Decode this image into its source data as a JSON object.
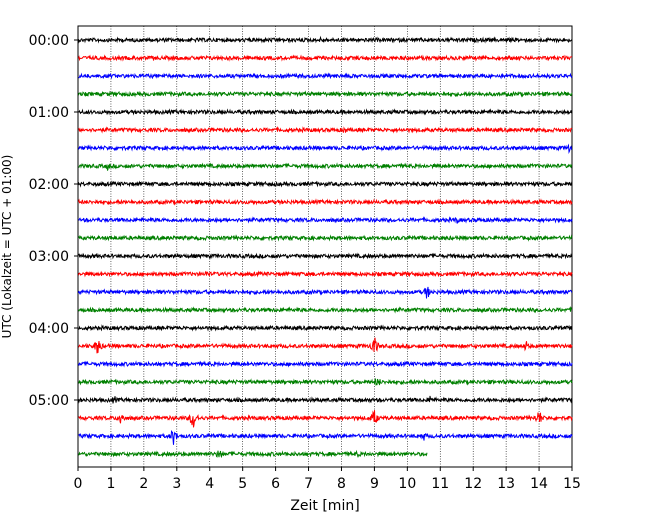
{
  "chart_data": {
    "type": "line",
    "title": "",
    "xlabel": "Zeit  [min]",
    "ylabel": "UTC (Lokalzeit = UTC + 01:00)",
    "xlim": [
      0,
      15
    ],
    "x_ticks": [
      "0",
      "1",
      "2",
      "3",
      "4",
      "5",
      "6",
      "7",
      "8",
      "9",
      "10",
      "11",
      "12",
      "13",
      "14",
      "15"
    ],
    "grid_vertical": true,
    "hour_labels": [
      "00:00",
      "01:00",
      "02:00",
      "03:00",
      "04:00",
      "05:00"
    ],
    "trace_colors": [
      "#000000",
      "#ff0000",
      "#0000ff",
      "#008000"
    ],
    "series": [
      {
        "start": "00:00",
        "color": "#000000",
        "events": [
          {
            "t": 7.4,
            "amp": 4
          }
        ]
      },
      {
        "start": "00:15",
        "color": "#ff0000",
        "events": [
          {
            "t": 2.3,
            "amp": 3
          }
        ]
      },
      {
        "start": "00:30",
        "color": "#0000ff",
        "events": []
      },
      {
        "start": "00:45",
        "color": "#008000",
        "events": []
      },
      {
        "start": "01:00",
        "color": "#000000",
        "events": [
          {
            "t": 3.5,
            "amp": 3
          }
        ]
      },
      {
        "start": "01:15",
        "color": "#ff0000",
        "events": [
          {
            "t": 8.1,
            "amp": 4
          }
        ]
      },
      {
        "start": "01:30",
        "color": "#0000ff",
        "events": [
          {
            "t": 1.3,
            "amp": 3
          },
          {
            "t": 14.9,
            "amp": 5
          }
        ]
      },
      {
        "start": "01:45",
        "color": "#008000",
        "events": [
          {
            "t": 0.9,
            "amp": 5
          }
        ]
      },
      {
        "start": "02:00",
        "color": "#000000",
        "events": []
      },
      {
        "start": "02:15",
        "color": "#ff0000",
        "events": []
      },
      {
        "start": "02:30",
        "color": "#0000ff",
        "events": [
          {
            "t": 11.5,
            "amp": 4
          }
        ]
      },
      {
        "start": "02:45",
        "color": "#008000",
        "events": []
      },
      {
        "start": "03:00",
        "color": "#000000",
        "events": []
      },
      {
        "start": "03:15",
        "color": "#ff0000",
        "events": [
          {
            "t": 3.9,
            "amp": 4
          }
        ]
      },
      {
        "start": "03:30",
        "color": "#0000ff",
        "events": [
          {
            "t": 10.6,
            "amp": 8
          }
        ]
      },
      {
        "start": "03:45",
        "color": "#008000",
        "events": []
      },
      {
        "start": "04:00",
        "color": "#000000",
        "events": []
      },
      {
        "start": "04:15",
        "color": "#ff0000",
        "events": [
          {
            "t": 0.6,
            "amp": 10
          },
          {
            "t": 9.0,
            "amp": 11
          },
          {
            "t": 13.6,
            "amp": 6
          }
        ]
      },
      {
        "start": "04:30",
        "color": "#0000ff",
        "events": []
      },
      {
        "start": "04:45",
        "color": "#008000",
        "events": [
          {
            "t": 9.1,
            "amp": 6
          }
        ]
      },
      {
        "start": "05:00",
        "color": "#000000",
        "events": [
          {
            "t": 1.1,
            "amp": 5
          },
          {
            "t": 10.7,
            "amp": 5
          }
        ]
      },
      {
        "start": "05:15",
        "color": "#ff0000",
        "events": [
          {
            "t": 1.3,
            "amp": 8
          },
          {
            "t": 3.5,
            "amp": 12
          },
          {
            "t": 9.0,
            "amp": 9
          },
          {
            "t": 14.0,
            "amp": 9
          }
        ]
      },
      {
        "start": "05:30",
        "color": "#0000ff",
        "events": [
          {
            "t": 2.9,
            "amp": 9
          },
          {
            "t": 10.5,
            "amp": 5
          }
        ]
      },
      {
        "start": "05:45",
        "color": "#008000",
        "end_t": 10.6,
        "events": [
          {
            "t": 4.3,
            "amp": 7
          },
          {
            "t": 8.5,
            "amp": 4
          }
        ]
      }
    ]
  }
}
